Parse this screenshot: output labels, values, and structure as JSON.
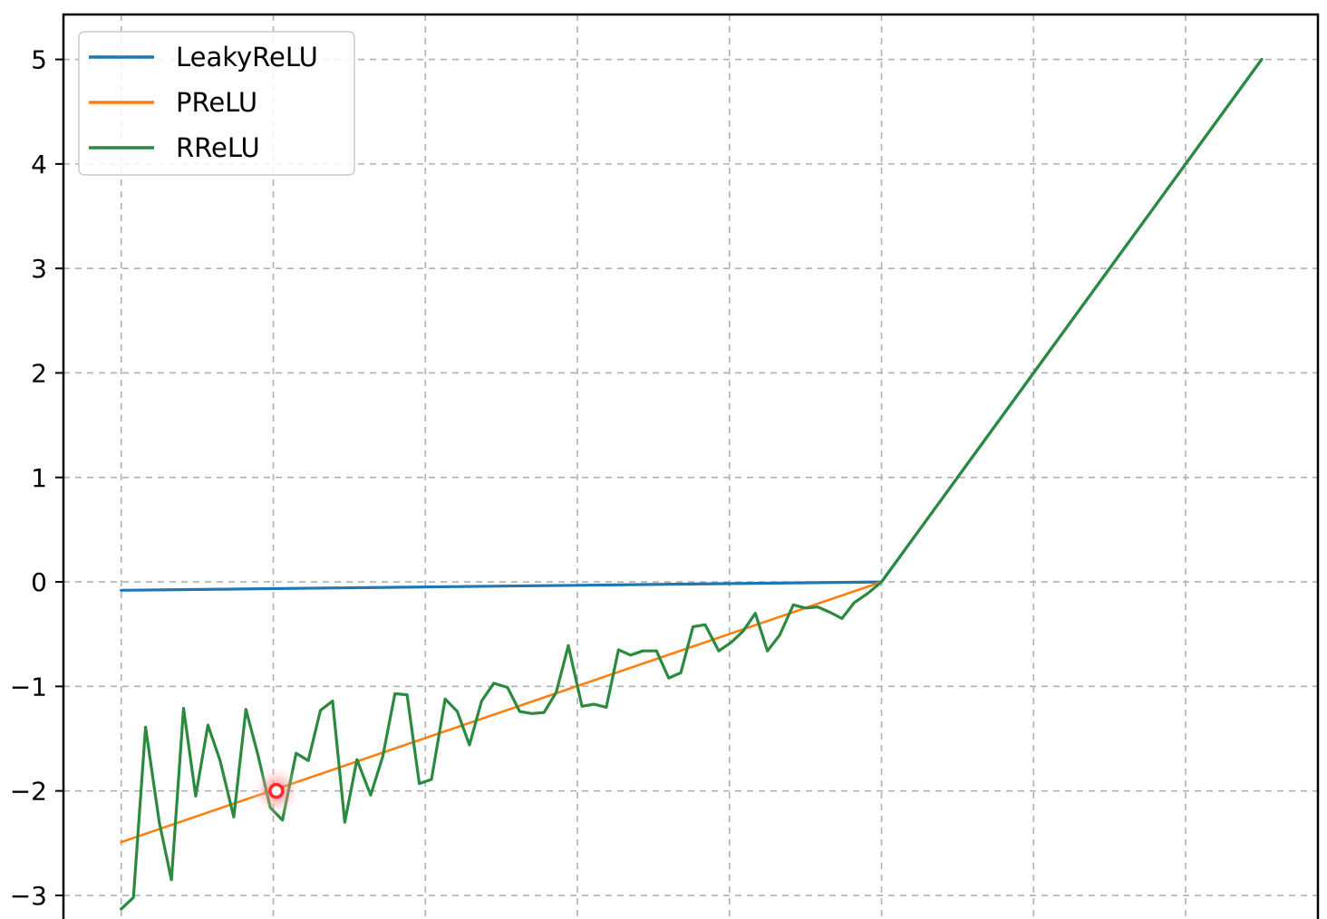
{
  "chart_data": {
    "type": "line",
    "title": "",
    "xlabel": "",
    "ylabel": "",
    "xlim": [
      -5.38,
      2.87
    ],
    "ylim": [
      -3.33,
      5.43
    ],
    "x_grid": [
      -5,
      -4,
      -3,
      -2,
      -1,
      0,
      1,
      2
    ],
    "y_ticks": [
      -3,
      -2,
      -1,
      0,
      1,
      2,
      3,
      4,
      5
    ],
    "y_tick_labels": [
      "−3",
      "−2",
      "−1",
      "0",
      "1",
      "2",
      "3",
      "4",
      "5"
    ],
    "grid": true,
    "grid_style": "dashed",
    "legend_position": "upper left",
    "legend": [
      "LeakyReLU",
      "PReLU",
      "RReLU"
    ],
    "colors": {
      "LeakyReLU": "#1f77b4",
      "PReLU": "#ff7f0e",
      "RReLU": "#2a8a3e",
      "marker": "#ff2a2a"
    },
    "series": [
      {
        "name": "LeakyReLU",
        "x": [
          -5.0,
          0.0,
          2.5
        ],
        "y": [
          -0.08,
          0.0,
          5.0
        ]
      },
      {
        "name": "PReLU",
        "x": [
          -5.0,
          0.0,
          2.5
        ],
        "y": [
          -2.49,
          0.0,
          5.0
        ]
      },
      {
        "name": "RReLU",
        "x": [
          -5.0,
          -4.92,
          -4.84,
          -4.75,
          -4.67,
          -4.59,
          -4.51,
          -4.43,
          -4.35,
          -4.26,
          -4.18,
          -4.1,
          -4.02,
          -3.94,
          -3.85,
          -3.77,
          -3.69,
          -3.61,
          -3.53,
          -3.45,
          -3.36,
          -3.28,
          -3.2,
          -3.12,
          -3.04,
          -2.96,
          -2.87,
          -2.79,
          -2.71,
          -2.63,
          -2.55,
          -2.46,
          -2.38,
          -2.3,
          -2.22,
          -2.14,
          -2.06,
          -1.97,
          -1.89,
          -1.81,
          -1.73,
          -1.65,
          -1.57,
          -1.48,
          -1.4,
          -1.32,
          -1.24,
          -1.16,
          -1.07,
          -0.99,
          -0.91,
          -0.83,
          -0.75,
          -0.67,
          -0.58,
          -0.5,
          -0.42,
          -0.34,
          -0.26,
          -0.18,
          -0.09,
          0.0,
          2.5
        ],
        "y": [
          -3.13,
          -3.02,
          -1.39,
          -2.3,
          -2.85,
          -1.21,
          -2.05,
          -1.37,
          -1.71,
          -2.25,
          -1.22,
          -1.66,
          -2.16,
          -2.28,
          -1.64,
          -1.71,
          -1.23,
          -1.14,
          -2.3,
          -1.7,
          -2.04,
          -1.67,
          -1.07,
          -1.08,
          -1.93,
          -1.89,
          -1.12,
          -1.24,
          -1.56,
          -1.14,
          -0.97,
          -1.01,
          -1.24,
          -1.26,
          -1.25,
          -1.06,
          -0.61,
          -1.19,
          -1.17,
          -1.2,
          -0.65,
          -0.7,
          -0.66,
          -0.66,
          -0.92,
          -0.87,
          -0.43,
          -0.41,
          -0.66,
          -0.58,
          -0.47,
          -0.3,
          -0.66,
          -0.51,
          -0.22,
          -0.25,
          -0.24,
          -0.29,
          -0.35,
          -0.2,
          -0.11,
          0.0,
          5.0
        ]
      }
    ],
    "highlight_point": {
      "x": -3.98,
      "y": -2.0
    }
  }
}
